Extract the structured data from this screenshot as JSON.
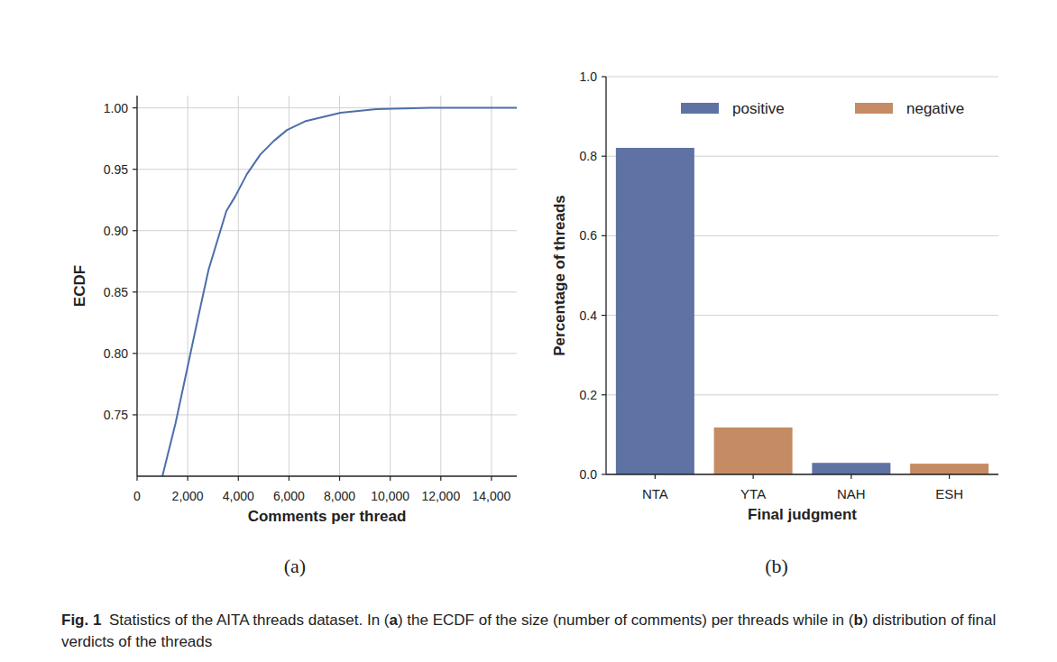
{
  "chart_data": [
    {
      "type": "line",
      "panel_label": "(a)",
      "x_label": "Comments per thread",
      "y_label": "ECDF",
      "x": [
        1000,
        1517,
        1975,
        2398,
        2822,
        3527,
        3880,
        4338,
        4867,
        5396,
        5925,
        6631,
        8042,
        9452,
        11570,
        15000
      ],
      "values": [
        0.7,
        0.743,
        0.787,
        0.828,
        0.868,
        0.916,
        0.928,
        0.946,
        0.962,
        0.973,
        0.982,
        0.989,
        0.996,
        0.999,
        1.0,
        1.0
      ],
      "color": "#4c6fa9",
      "xlim": [
        0,
        15000
      ],
      "ylim": [
        0.7,
        1.01
      ],
      "xticks": [
        0,
        {
          "value": 2000,
          "label": "2,000"
        },
        {
          "value": 4000,
          "label": "4,000"
        },
        {
          "value": 6000,
          "label": "6,000"
        },
        {
          "value": 8000,
          "label": "8,000"
        },
        {
          "value": 10000,
          "label": "10,000"
        },
        {
          "value": 12000,
          "label": "12,000"
        },
        {
          "value": 14000,
          "label": "14,000"
        }
      ],
      "yticks": [
        0.75,
        {
          "value": 0.8,
          "label": "0.80"
        },
        0.85,
        {
          "value": 0.9,
          "label": "0.90"
        },
        0.95,
        {
          "value": 1,
          "label": "1.00"
        }
      ],
      "grid": true
    },
    {
      "type": "bar",
      "panel_label": "(b)",
      "x_label": "Final judgment",
      "y_label": "Percentage of threads",
      "categories": [
        "NTA",
        "YTA",
        "NAH",
        "ESH"
      ],
      "series": [
        {
          "name": "positive",
          "color": "#5e73a3",
          "values": [
            0.821,
            null,
            0.029,
            null
          ]
        },
        {
          "name": "negative",
          "color": "#c58b64",
          "values": [
            null,
            0.118,
            null,
            0.027
          ]
        }
      ],
      "ylim": [
        0,
        1
      ],
      "yticks": [
        {
          "value": 0,
          "label": "0.0"
        },
        0.2,
        0.4,
        0.6,
        0.8,
        {
          "value": 1,
          "label": "1.0"
        }
      ],
      "grid": "y",
      "legend": "top"
    }
  ],
  "caption": {
    "label": "Fig. 1",
    "text": "Statistics of the AITA threads dataset. In (a) the ECDF of the size (number of comments) per threads while in (b) distribution of final verdicts of the threads"
  }
}
